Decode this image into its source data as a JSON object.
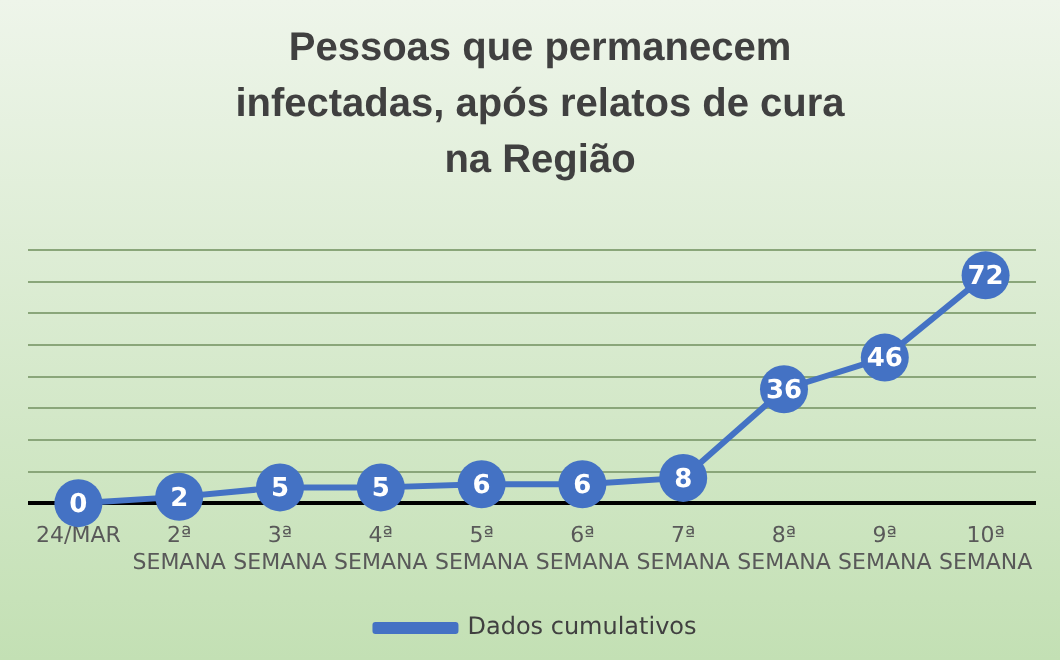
{
  "chart_data": {
    "type": "line",
    "title": "Pessoas que permanecem infectadas, após relatos de cura na Região",
    "categories": [
      "24/MAR",
      "2ª SEMANA",
      "3ª SEMANA",
      "4ª SEMANA",
      "5ª SEMANA",
      "6ª SEMANA",
      "7ª SEMANA",
      "8ª SEMANA",
      "9ª SEMANA",
      "10ª SEMANA"
    ],
    "series": [
      {
        "name": "Dados cumulativos",
        "color": "#4472c4",
        "values": [
          0,
          2,
          5,
          5,
          6,
          6,
          8,
          36,
          46,
          72
        ]
      }
    ],
    "ylim": [
      0,
      80
    ],
    "yticks": [
      {
        "value": 0,
        "label": null
      },
      {
        "value": 10,
        "label": null
      },
      {
        "value": 20,
        "label": null
      },
      {
        "value": 30,
        "label": null
      },
      {
        "value": 40,
        "label": null
      },
      {
        "value": 50,
        "label": null
      },
      {
        "value": 60,
        "label": null
      },
      {
        "value": 70,
        "label": null
      },
      {
        "value": 80,
        "label": null
      }
    ],
    "tick_labels": "x",
    "grid": "y",
    "legend": "bottom",
    "marker": "circle",
    "line_style": "solid",
    "data_labels": true
  }
}
